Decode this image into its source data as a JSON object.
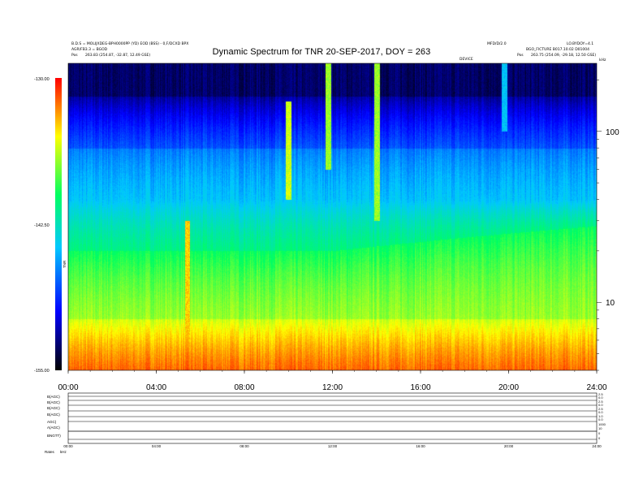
{
  "header": {
    "title": "Dynamic Spectrum for TNR 20-SEP-2017, DOY = 263",
    "left_line1": "B.D.S = MOLIJXDEG-BPH0000PP (YD) EOD (BSS) - 0,F/DCXD BPX",
    "left_line2": "AGR/FB3.3 = BGOD",
    "left_line3_label": "Pos",
    "left_line3_value": "263.83 (254.87, -32.87, 12.49 GSE)",
    "mid_right_top": "MFD/D/2.0",
    "right_line1": "LO.BYDOY=4.1",
    "right_line2": "BGO_FICTURE B017.10.02 D01004",
    "right_line3_label": "Pos",
    "right_line3_value": "263.75 (254.09, -29.18, 12.50 GSE)",
    "center_marker": "DEVICE",
    "corner_unit": "kHz"
  },
  "colorbar": {
    "top_label": "-130.00",
    "mid_label": "-142.50",
    "bottom_label": "-155.00",
    "axis_label": "TNR"
  },
  "chart_data": {
    "type": "heatmap",
    "title": "Dynamic Spectrum for TNR 20-SEP-2017, DOY = 263",
    "x": {
      "range": [
        0,
        24
      ],
      "unit": "hours UT",
      "tick_labels": [
        "00:00",
        "04:00",
        "08:00",
        "12:00",
        "16:00",
        "20:00",
        "24:00"
      ]
    },
    "y": {
      "scale": "log",
      "range": [
        4,
        250
      ],
      "unit": "kHz",
      "tick_labels": [
        "10",
        "100"
      ]
    },
    "color_scale": {
      "range": [
        -155.0,
        -130.0
      ],
      "colors": [
        "#000000",
        "#0000ff",
        "#00c8ff",
        "#00ff60",
        "#ffff00",
        "#ff0000"
      ]
    },
    "bands": [
      {
        "freq_range": [
          80,
          250
        ],
        "level": -152,
        "description": "dark blue/black"
      },
      {
        "freq_range": [
          40,
          80
        ],
        "level": -147
      },
      {
        "freq_range": [
          20,
          40
        ],
        "level": -143
      },
      {
        "freq_range": [
          8,
          20
        ],
        "level": -138
      },
      {
        "freq_range": [
          4,
          8
        ],
        "level": -134
      }
    ],
    "bursts": [
      {
        "time": 11.8,
        "freq_min": 60,
        "freq_max": 250,
        "level": -137
      },
      {
        "time": 10.0,
        "freq_min": 40,
        "freq_max": 150,
        "level": -136
      },
      {
        "time": 14.0,
        "freq_min": 30,
        "freq_max": 250,
        "level": -137
      },
      {
        "time": 5.4,
        "freq_min": 5,
        "freq_max": 30,
        "level": -134
      },
      {
        "time": 19.8,
        "freq_min": 100,
        "freq_max": 250,
        "level": -145
      }
    ]
  },
  "panels": {
    "left_labels": [
      "B(AGC)",
      "B(AGC)",
      "B(AGC)",
      "B(AGC)",
      "AGC)",
      "A(AGC)",
      "BNGTT)",
      "Rates"
    ],
    "right_values": [
      "2.5",
      "0.0",
      "2.5",
      "0.0",
      "2.5",
      "0.0",
      "1.0",
      "0.0",
      "1000",
      "10",
      "0",
      "0"
    ],
    "time_labels": [
      "00:00",
      "04:00",
      "08:00",
      "12:00",
      "16:00",
      "20:00",
      "24:00"
    ],
    "bottom_left": "Rates",
    "bottom_unit": "kHz"
  }
}
